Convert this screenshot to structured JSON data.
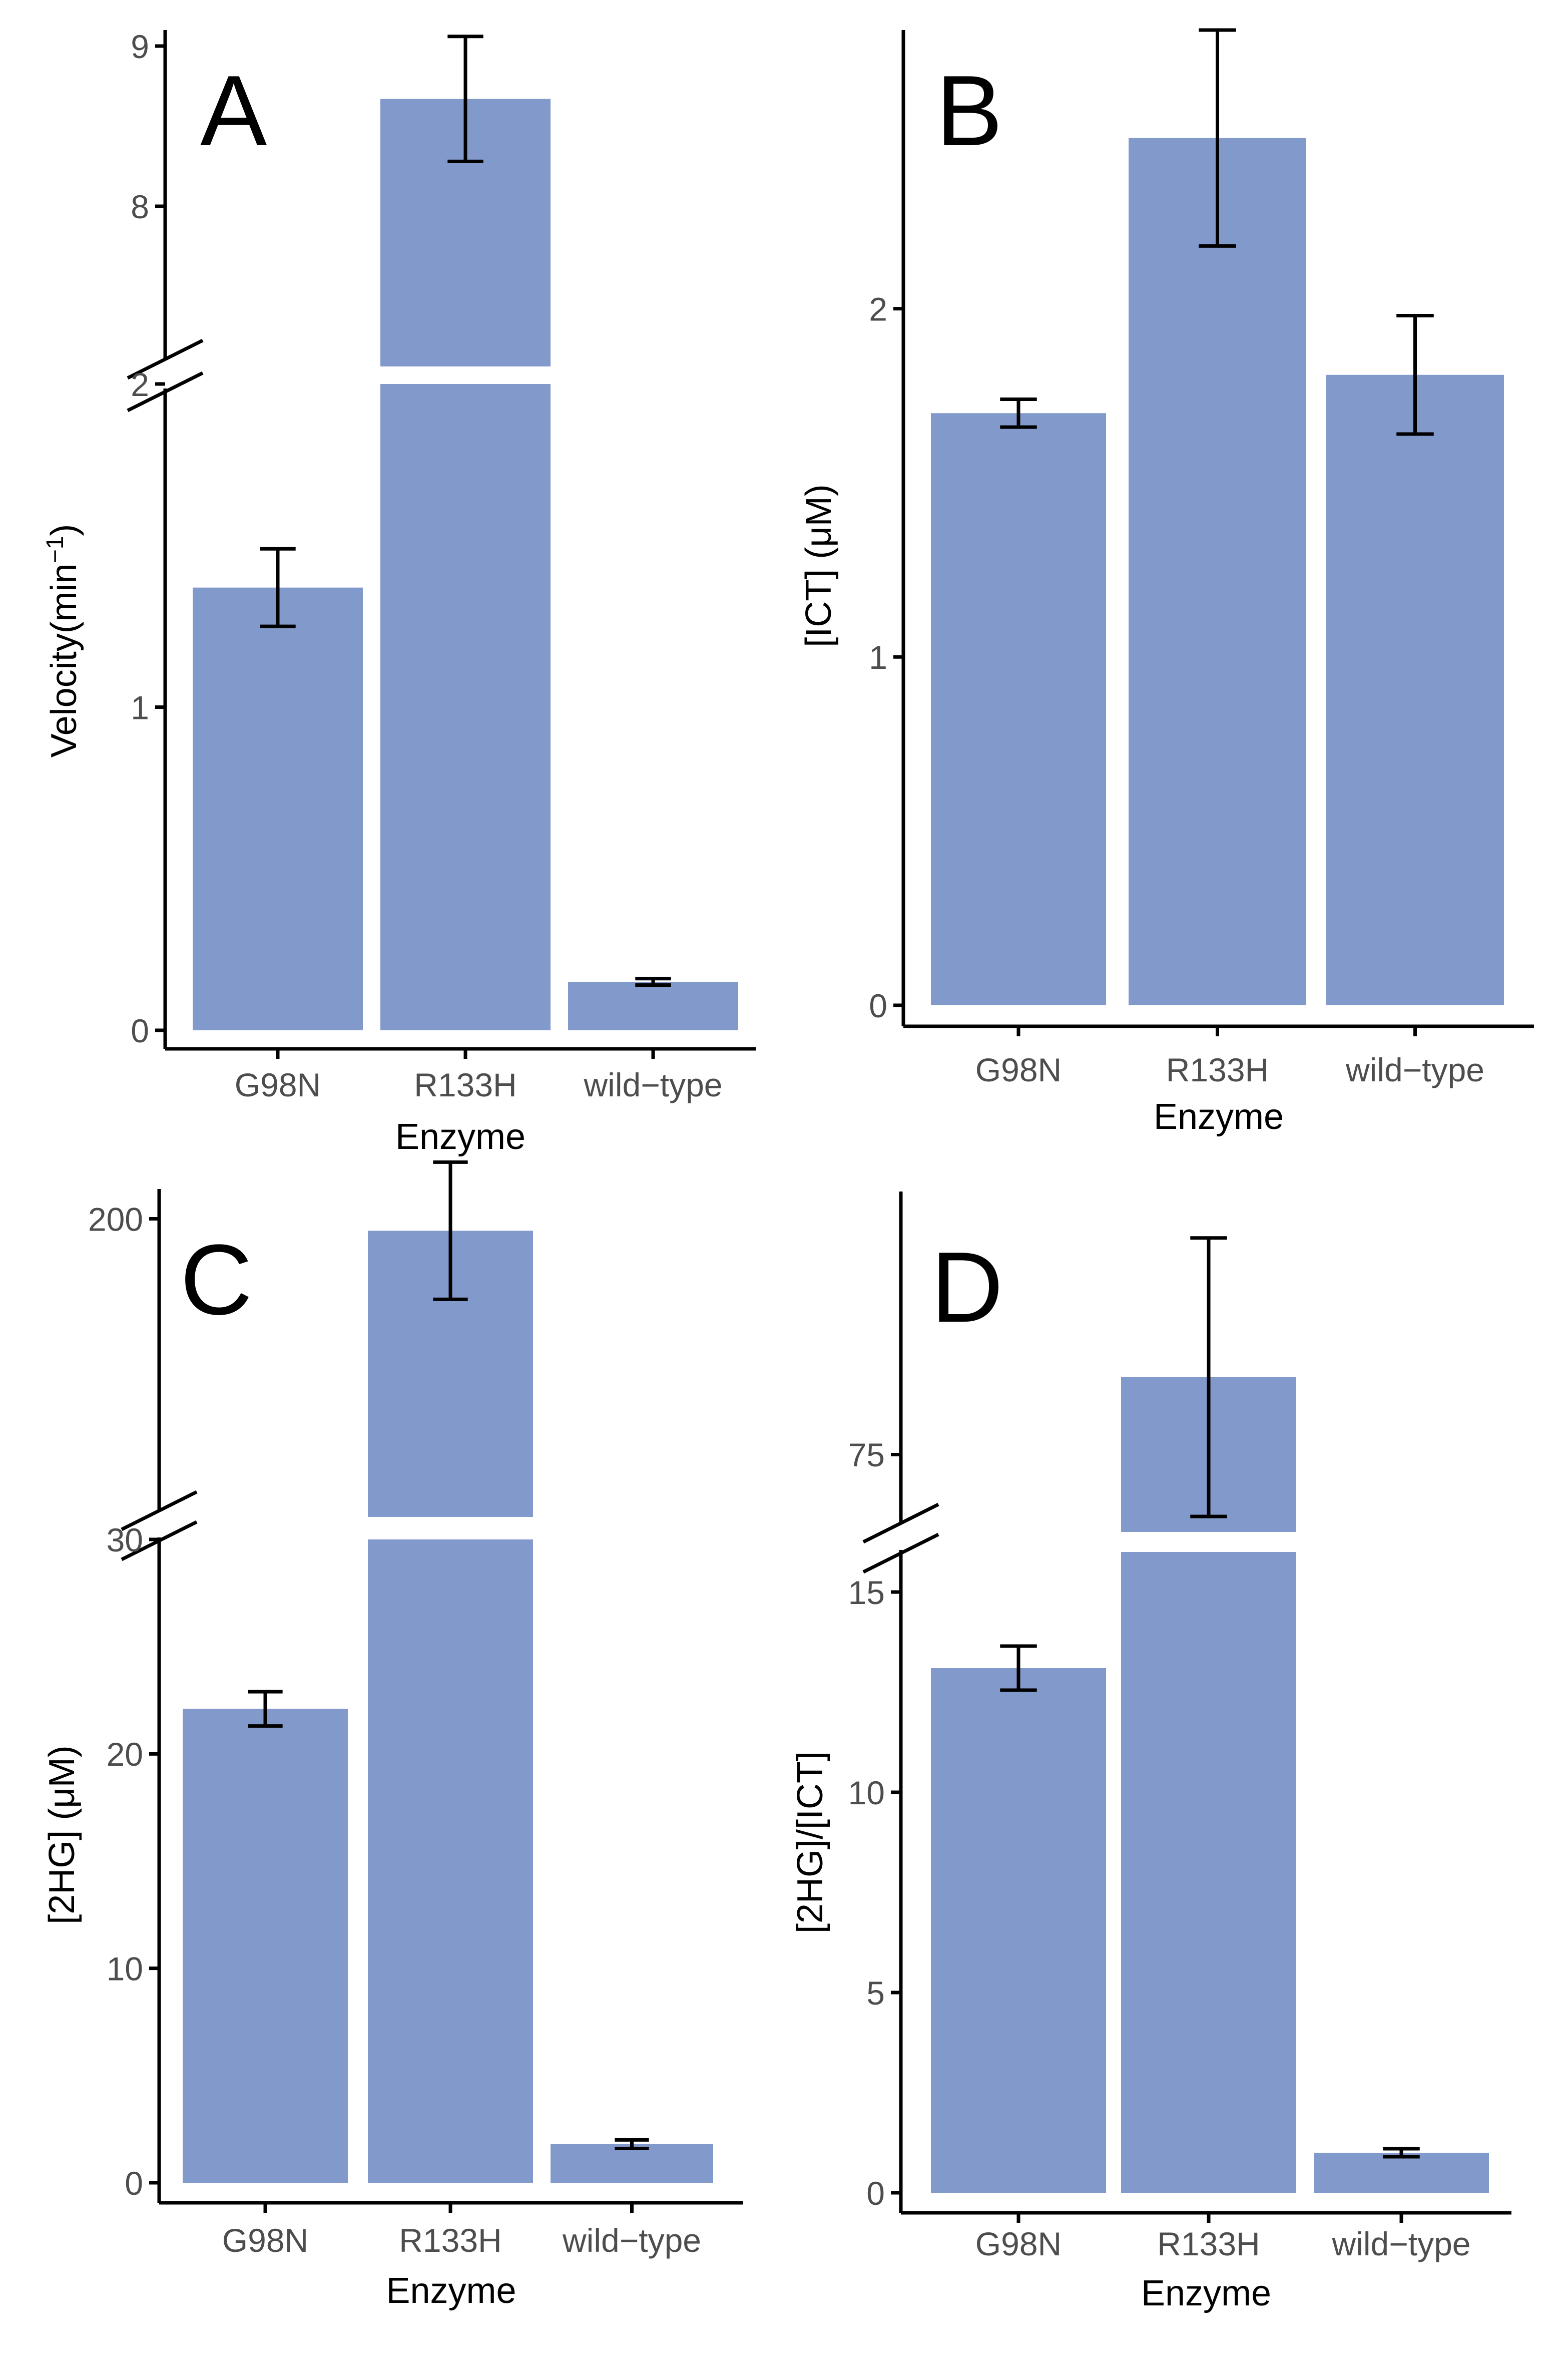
{
  "colors": {
    "bar": "#8299CB",
    "axis": "#000000",
    "tick_label": "#4D4D4D",
    "error_bar": "#000000",
    "background": "#FFFFFF"
  },
  "chart_data": [
    {
      "panel": "A",
      "type": "bar",
      "title": "",
      "xlabel": "Enzyme",
      "ylabel": "Velocity(min",
      "ylabel_superscript": "−1",
      "ylabel_close": ")",
      "categories": [
        "G98N",
        "R133H",
        "wild−type"
      ],
      "values": [
        1.37,
        8.67,
        0.15
      ],
      "errors": [
        0.12,
        0.39,
        0.01
      ],
      "y_break": true,
      "ylim_lower": [
        0,
        2.0
      ],
      "ylim_upper": [
        7.0,
        9.1
      ],
      "yticks_lower": [
        0,
        1,
        2
      ],
      "yticks_upper": [
        8,
        9
      ],
      "grid": false
    },
    {
      "panel": "B",
      "type": "bar",
      "title": "",
      "xlabel": "Enzyme",
      "ylabel": "[ICT] (μM)",
      "categories": [
        "G98N",
        "R133H",
        "wild−type"
      ],
      "values": [
        1.7,
        2.49,
        1.81
      ],
      "errors": [
        0.04,
        0.31,
        0.17
      ],
      "y_break": false,
      "ylim": [
        0,
        2.8
      ],
      "yticks": [
        0,
        1,
        2
      ],
      "grid": false
    },
    {
      "panel": "C",
      "type": "bar",
      "title": "",
      "xlabel": "Enzyme",
      "ylabel": "[2HG] (μM)",
      "categories": [
        "G98N",
        "R133H",
        "wild−type"
      ],
      "values": [
        22.1,
        198.0,
        1.8
      ],
      "errors": [
        0.8,
        11.5,
        0.2
      ],
      "y_break": true,
      "ylim_lower": [
        0,
        30.0
      ],
      "ylim_upper": [
        150.0,
        205.0
      ],
      "yticks_lower": [
        0,
        10,
        20,
        30
      ],
      "yticks_upper": [
        200
      ],
      "grid": false
    },
    {
      "panel": "D",
      "type": "bar",
      "title": "",
      "xlabel": "Enzyme",
      "ylabel": "[2HG]/[ICT]",
      "categories": [
        "G98N",
        "R133H",
        "wild−type"
      ],
      "values": [
        13.1,
        80.0,
        1.0
      ],
      "errors": [
        0.55,
        9.0,
        0.1
      ],
      "y_break": true,
      "ylim_lower": [
        0,
        16.0
      ],
      "ylim_upper": [
        70.0,
        92.0
      ],
      "yticks_lower": [
        0,
        5,
        10,
        15
      ],
      "yticks_upper": [
        75
      ],
      "grid": false
    }
  ]
}
